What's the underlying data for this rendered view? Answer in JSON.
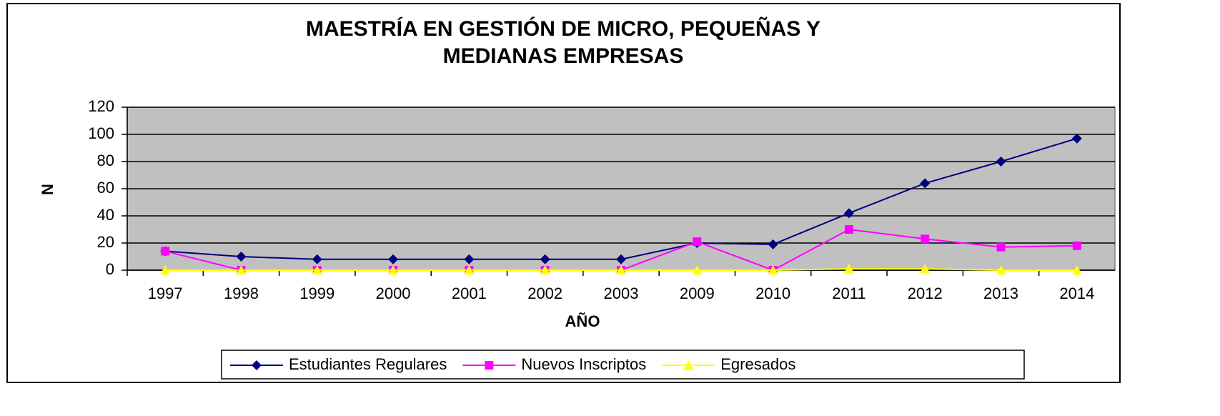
{
  "chart_data": {
    "type": "line",
    "title": [
      "MAESTRÍA EN GESTIÓN DE MICRO, PEQUEÑAS Y",
      "MEDIANAS EMPRESAS"
    ],
    "x_label": "AÑO",
    "y_label": "N",
    "categories": [
      "1997",
      "1998",
      "1999",
      "2000",
      "2001",
      "2002",
      "2003",
      "2009",
      "2010",
      "2011",
      "2012",
      "2013",
      "2014"
    ],
    "series": [
      {
        "name": "Estudiantes Regulares",
        "color": "#000080",
        "marker": "diamond",
        "values": [
          14,
          10,
          8,
          8,
          8,
          8,
          8,
          20,
          19,
          42,
          64,
          80,
          97
        ]
      },
      {
        "name": "Nuevos Inscriptos",
        "color": "#FF00FF",
        "marker": "square",
        "values": [
          14,
          0,
          0,
          0,
          0,
          0,
          0,
          21,
          0,
          30,
          23,
          17,
          18
        ]
      },
      {
        "name": "Egresados",
        "color": "#FFFF00",
        "marker": "triangle",
        "values": [
          0,
          0,
          0,
          0,
          0,
          0,
          0,
          0,
          0,
          1,
          1,
          0,
          0
        ]
      }
    ],
    "ylim": [
      0,
      120
    ],
    "yticks": [
      0,
      20,
      40,
      60,
      80,
      100,
      120
    ],
    "grid": true,
    "legend": "bottom"
  }
}
